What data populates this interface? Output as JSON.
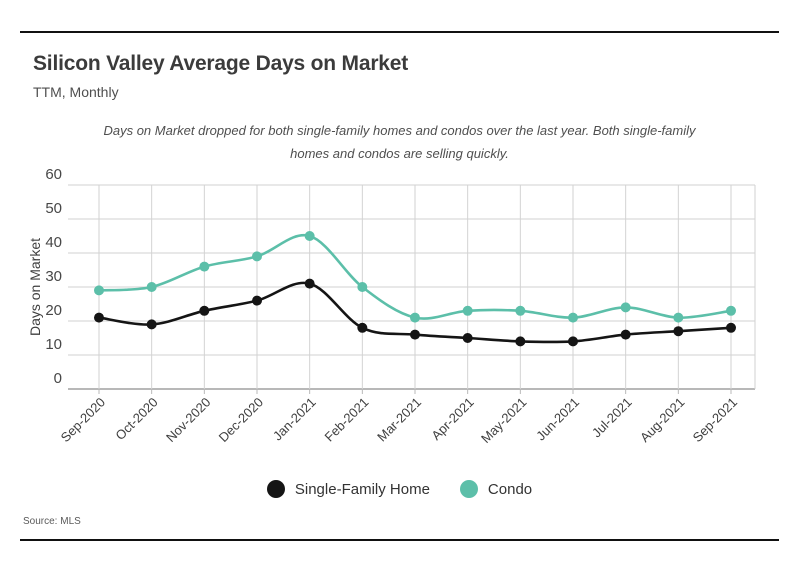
{
  "header": {
    "title": "Silicon Valley Average Days on Market",
    "subtitle": "TTM, Monthly"
  },
  "description": "Days on Market dropped for both single-family homes and condos over the last year. Both single-family homes and condos are selling quickly.",
  "source": {
    "label": "Source:",
    "value": "MLS",
    "full": "Source: MLS"
  },
  "colors": {
    "series_black": "#151515",
    "series_teal": "#5cbfa9",
    "grid": "#d2d2d2",
    "axis": "#8e8e8e",
    "tick_label": "#3f3f3f",
    "rule": "#111111"
  },
  "chart_data": {
    "type": "line",
    "title": "Silicon Valley Average Days on Market",
    "subtitle": "TTM, Monthly",
    "xlabel": "",
    "ylabel": "Days on Market",
    "ylim": [
      0,
      60
    ],
    "ytick_step": 10,
    "grid": true,
    "legend_position": "bottom",
    "marker": "circle",
    "categories": [
      "Sep-2020",
      "Oct-2020",
      "Nov-2020",
      "Dec-2020",
      "Jan-2021",
      "Feb-2021",
      "Mar-2021",
      "Apr-2021",
      "May-2021",
      "Jun-2021",
      "Jul-2021",
      "Aug-2021",
      "Sep-2021"
    ],
    "series": [
      {
        "name": "Single-Family Home",
        "color": "#151515",
        "values": [
          21,
          19,
          23,
          26,
          31,
          18,
          16,
          15,
          14,
          14,
          16,
          17,
          18
        ]
      },
      {
        "name": "Condo",
        "color": "#5cbfa9",
        "values": [
          29,
          30,
          36,
          39,
          45,
          30,
          21,
          23,
          23,
          21,
          24,
          21,
          23
        ]
      }
    ]
  }
}
